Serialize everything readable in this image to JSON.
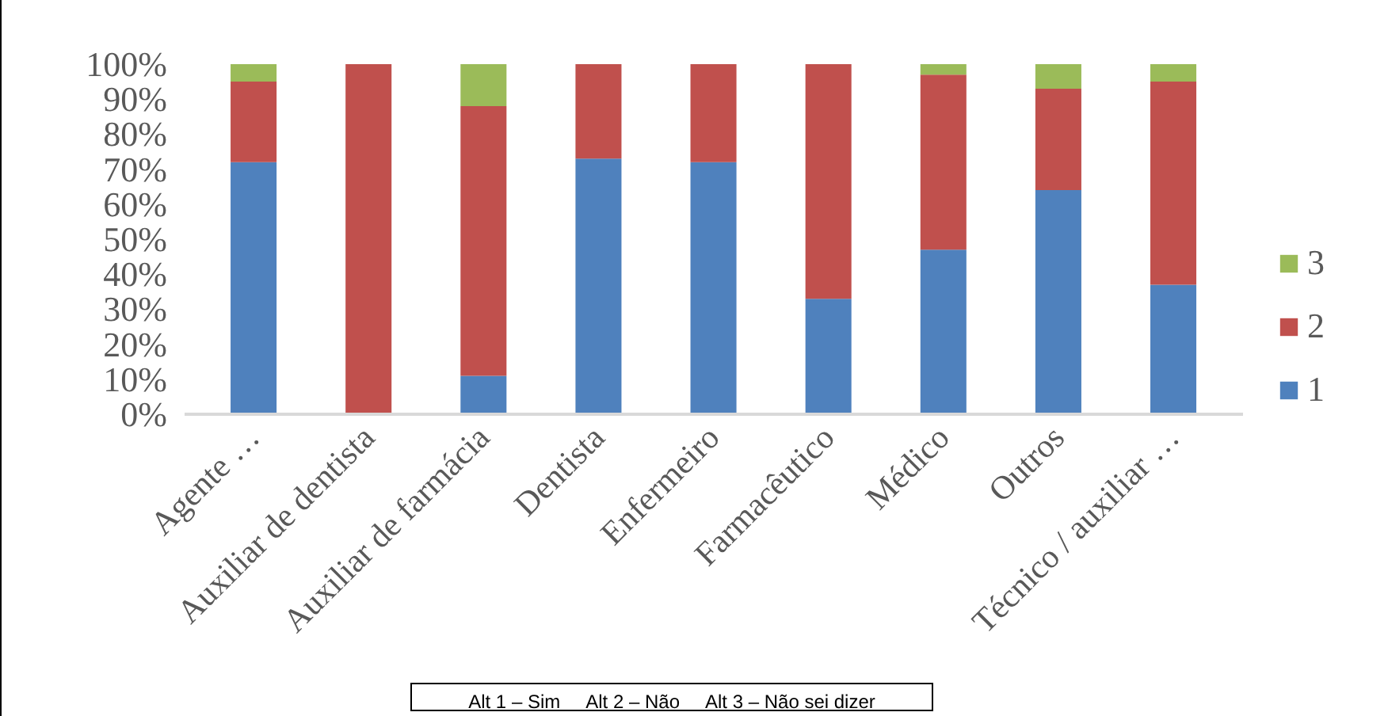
{
  "chart_data": {
    "type": "bar",
    "stacked": true,
    "categories": [
      "Agente …",
      "Auxiliar de dentista",
      "Auxiliar de farmácia",
      "Dentista",
      "Enfermeiro",
      "Farmacêutico",
      "Médico",
      "Outros",
      "Técnico / auxiliar …"
    ],
    "series": [
      {
        "name": "1",
        "color": "#4f81bd",
        "values": [
          72,
          0,
          11,
          73,
          72,
          33,
          47,
          64,
          37
        ]
      },
      {
        "name": "2",
        "color": "#c0504d",
        "values": [
          23,
          100,
          77,
          27,
          28,
          67,
          50,
          29,
          58
        ]
      },
      {
        "name": "3",
        "color": "#9bbb59",
        "values": [
          5,
          0,
          12,
          0,
          0,
          0,
          3,
          7,
          5
        ]
      }
    ],
    "ylim": [
      0,
      100
    ],
    "yticks": [
      {
        "value": 0,
        "label": "0%"
      },
      {
        "value": 10,
        "label": "10%"
      },
      {
        "value": 20,
        "label": "20%"
      },
      {
        "value": 30,
        "label": "30%"
      },
      {
        "value": 40,
        "label": "40%"
      },
      {
        "value": 50,
        "label": "50%"
      },
      {
        "value": 60,
        "label": "60%"
      },
      {
        "value": 70,
        "label": "70%"
      },
      {
        "value": 80,
        "label": "80%"
      },
      {
        "value": 90,
        "label": "90%"
      },
      {
        "value": 100,
        "label": "100%"
      }
    ],
    "grid": false,
    "legend": "right",
    "annotations": [
      "Alt 1 – Sim     Alt 2 – Não     Alt 3 – Não sei dizer"
    ]
  }
}
